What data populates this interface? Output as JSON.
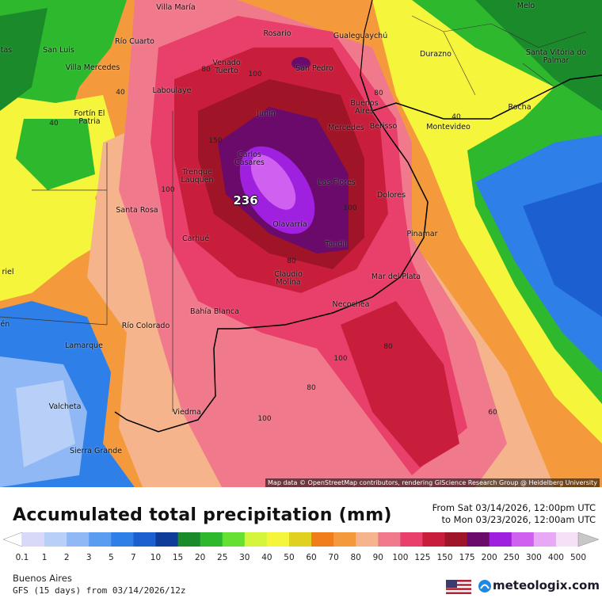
{
  "map": {
    "cities": [
      "Villa María",
      "Melo",
      "Río Cuarto",
      "Rosario",
      "Gualeguaychú",
      "San Luis",
      "Villa Mercedes",
      "Venado Tuerto",
      "San Pedro",
      "Durazno",
      "Santa Vitória do Palmar",
      "Laboulaye",
      "Buenos Aires",
      "Rocha",
      "Fortín El Patria",
      "Junín",
      "Mercedes",
      "Berisso",
      "Montevideo",
      "Carlos Casares",
      "Trenque Lauquen",
      "Las Flores",
      "Dolores",
      "Santa Rosa",
      "Olavarría",
      "Tandil",
      "Pinamar",
      "Carhué",
      "Claudio Molina",
      "Mar del Plata",
      "Necochea",
      "Bahía Blanca",
      "Río Colorado",
      "Lamarque",
      "Valcheta",
      "Viedma",
      "Sierra Grande",
      "tas",
      "riel",
      "lén"
    ],
    "contour_labels": [
      80,
      100,
      40,
      40,
      150,
      100,
      80,
      40,
      100,
      80,
      80,
      100,
      80,
      100,
      60
    ],
    "max_value": 236,
    "attribution": "Map data © OpenStreetMap contributors, rendering GIScience Research Group @ Heidelberg University"
  },
  "header": {
    "title": "Accumulated total precipitation (mm)",
    "valid_from": "From Sat 03/14/2026, 12:00pm UTC",
    "valid_to": "to Mon 03/23/2026, 12:00am UTC"
  },
  "legend": {
    "values": [
      0.1,
      1,
      2,
      3,
      5,
      7,
      10,
      15,
      20,
      25,
      30,
      40,
      50,
      60,
      70,
      80,
      90,
      100,
      125,
      150,
      175,
      200,
      250,
      300,
      400,
      500
    ],
    "colors": [
      "#ffffff",
      "#d8d8f8",
      "#b8cff8",
      "#8fb8f5",
      "#5a9cf0",
      "#2f7fe8",
      "#1c5fd0",
      "#103c99",
      "#1a8a2a",
      "#2eb82e",
      "#66e033",
      "#d4f53c",
      "#f5f53c",
      "#e0d020",
      "#f07c1a",
      "#f59a3c",
      "#f5b48c",
      "#f07a8c",
      "#e8406a",
      "#c81e3c",
      "#a01428",
      "#6a0a6a",
      "#a020e0",
      "#d060f0",
      "#e8a8f5",
      "#f5e0f8",
      "#c8c8c8"
    ]
  },
  "footer": {
    "region": "Buenos Aires",
    "model": "GFS (15 days) from 03/14/2026/12z",
    "brand": "meteologix.com"
  }
}
